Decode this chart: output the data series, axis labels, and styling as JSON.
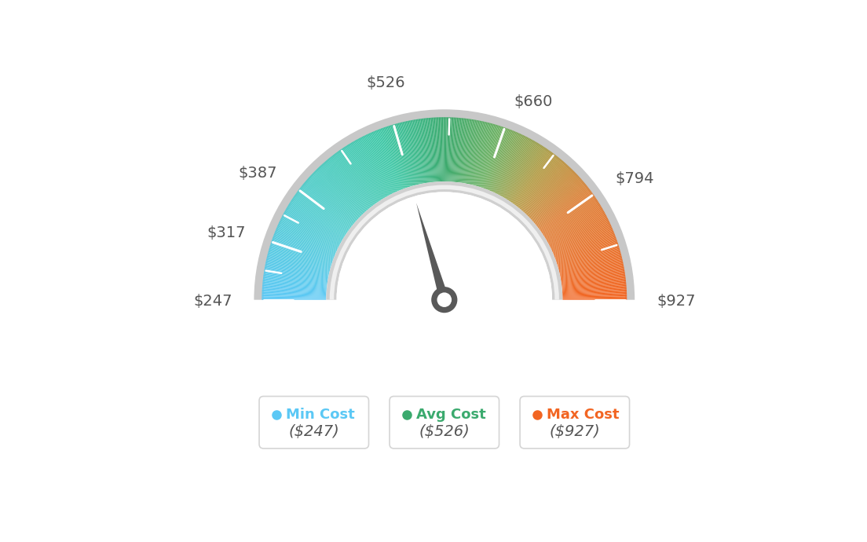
{
  "min_val": 247,
  "max_val": 927,
  "avg_val": 526,
  "tick_labels": [
    "$247",
    "$317",
    "$387",
    "$526",
    "$660",
    "$794",
    "$927"
  ],
  "tick_values": [
    247,
    317,
    387,
    526,
    660,
    794,
    927
  ],
  "min_cost_label": "Min Cost",
  "avg_cost_label": "Avg Cost",
  "max_cost_label": "Max Cost",
  "min_color": "#5BC8F5",
  "avg_color": "#3BAA6E",
  "max_color": "#F26522",
  "value_color": "#555555",
  "background_color": "#ffffff",
  "color_stops": [
    [
      0.0,
      [
        0.357,
        0.784,
        0.961
      ]
    ],
    [
      0.2,
      [
        0.306,
        0.8,
        0.8
      ]
    ],
    [
      0.38,
      [
        0.231,
        0.78,
        0.647
      ]
    ],
    [
      0.5,
      [
        0.231,
        0.667,
        0.431
      ]
    ],
    [
      0.6,
      [
        0.42,
        0.69,
        0.38
      ]
    ],
    [
      0.7,
      [
        0.69,
        0.6,
        0.25
      ]
    ],
    [
      0.8,
      [
        0.87,
        0.49,
        0.2
      ]
    ],
    [
      1.0,
      [
        0.949,
        0.396,
        0.133
      ]
    ]
  ]
}
